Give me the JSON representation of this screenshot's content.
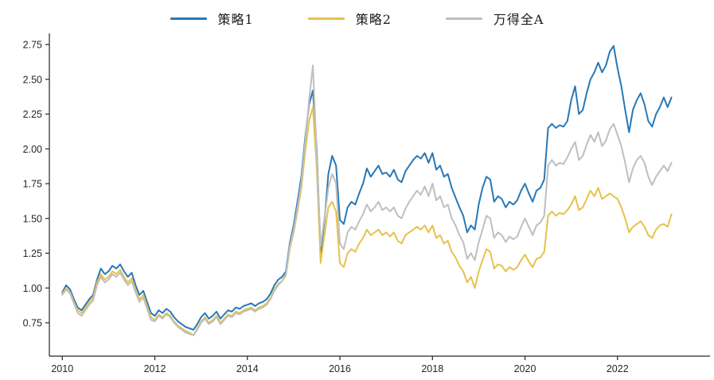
{
  "chart_data": {
    "type": "line",
    "title": "",
    "xlabel": "",
    "ylabel": "",
    "grid": false,
    "legend_position": "top-center",
    "background_color": "#ffffff",
    "axis_color": "#262626",
    "x_start_year": 2010.0,
    "points_per_year": 12,
    "xlim": [
      2009.72,
      2024.0
    ],
    "ylim": [
      0.51,
      2.83
    ],
    "x_ticks": [
      2010,
      2012,
      2014,
      2016,
      2018,
      2020,
      2022
    ],
    "y_ticks": [
      0.75,
      1.0,
      1.25,
      1.5,
      1.75,
      2.0,
      2.25,
      2.5,
      2.75
    ],
    "series": [
      {
        "name": "策略1",
        "color": "#2878b5",
        "values": [
          0.97,
          1.02,
          0.99,
          0.92,
          0.86,
          0.84,
          0.88,
          0.92,
          0.95,
          1.06,
          1.14,
          1.1,
          1.12,
          1.16,
          1.14,
          1.17,
          1.12,
          1.08,
          1.11,
          1.02,
          0.95,
          0.98,
          0.9,
          0.82,
          0.8,
          0.84,
          0.82,
          0.85,
          0.83,
          0.79,
          0.76,
          0.74,
          0.72,
          0.71,
          0.7,
          0.74,
          0.79,
          0.82,
          0.78,
          0.8,
          0.83,
          0.78,
          0.81,
          0.84,
          0.83,
          0.86,
          0.85,
          0.87,
          0.88,
          0.89,
          0.87,
          0.89,
          0.9,
          0.92,
          0.96,
          1.02,
          1.06,
          1.08,
          1.12,
          1.32,
          1.45,
          1.62,
          1.8,
          2.08,
          2.32,
          2.42,
          1.99,
          1.25,
          1.48,
          1.82,
          1.95,
          1.88,
          1.49,
          1.46,
          1.58,
          1.62,
          1.6,
          1.68,
          1.75,
          1.86,
          1.8,
          1.84,
          1.88,
          1.82,
          1.83,
          1.8,
          1.85,
          1.78,
          1.76,
          1.84,
          1.88,
          1.92,
          1.95,
          1.93,
          1.97,
          1.9,
          1.97,
          1.85,
          1.88,
          1.8,
          1.82,
          1.72,
          1.65,
          1.58,
          1.52,
          1.4,
          1.45,
          1.42,
          1.6,
          1.72,
          1.8,
          1.78,
          1.62,
          1.66,
          1.64,
          1.58,
          1.62,
          1.6,
          1.63,
          1.7,
          1.75,
          1.68,
          1.62,
          1.7,
          1.72,
          1.78,
          2.15,
          2.18,
          2.15,
          2.17,
          2.16,
          2.2,
          2.35,
          2.45,
          2.25,
          2.28,
          2.4,
          2.5,
          2.55,
          2.62,
          2.55,
          2.6,
          2.7,
          2.74,
          2.58,
          2.45,
          2.28,
          2.12,
          2.28,
          2.35,
          2.4,
          2.32,
          2.2,
          2.16,
          2.25,
          2.3,
          2.37,
          2.3,
          2.37
        ]
      },
      {
        "name": "策略2",
        "color": "#e6c24a",
        "values": [
          0.96,
          1.0,
          0.97,
          0.9,
          0.84,
          0.82,
          0.86,
          0.9,
          0.93,
          1.04,
          1.1,
          1.06,
          1.08,
          1.12,
          1.1,
          1.13,
          1.08,
          1.04,
          1.07,
          0.99,
          0.92,
          0.95,
          0.87,
          0.79,
          0.77,
          0.81,
          0.79,
          0.82,
          0.8,
          0.76,
          0.73,
          0.71,
          0.69,
          0.68,
          0.66,
          0.71,
          0.76,
          0.79,
          0.75,
          0.77,
          0.8,
          0.75,
          0.78,
          0.81,
          0.8,
          0.83,
          0.82,
          0.84,
          0.85,
          0.86,
          0.84,
          0.86,
          0.87,
          0.89,
          0.93,
          0.99,
          1.03,
          1.05,
          1.09,
          1.28,
          1.4,
          1.55,
          1.72,
          1.98,
          2.2,
          2.3,
          1.85,
          1.18,
          1.38,
          1.58,
          1.62,
          1.55,
          1.18,
          1.15,
          1.25,
          1.28,
          1.26,
          1.32,
          1.36,
          1.42,
          1.38,
          1.4,
          1.42,
          1.38,
          1.4,
          1.37,
          1.4,
          1.34,
          1.32,
          1.38,
          1.4,
          1.42,
          1.44,
          1.42,
          1.45,
          1.4,
          1.45,
          1.36,
          1.38,
          1.32,
          1.34,
          1.26,
          1.22,
          1.16,
          1.12,
          1.04,
          1.08,
          1.0,
          1.12,
          1.2,
          1.28,
          1.26,
          1.14,
          1.17,
          1.16,
          1.12,
          1.15,
          1.13,
          1.15,
          1.2,
          1.24,
          1.19,
          1.15,
          1.21,
          1.22,
          1.26,
          1.52,
          1.55,
          1.52,
          1.54,
          1.53,
          1.56,
          1.6,
          1.66,
          1.56,
          1.58,
          1.64,
          1.7,
          1.66,
          1.72,
          1.64,
          1.66,
          1.68,
          1.66,
          1.64,
          1.58,
          1.5,
          1.4,
          1.44,
          1.46,
          1.48,
          1.44,
          1.38,
          1.36,
          1.42,
          1.45,
          1.46,
          1.44,
          1.53
        ]
      },
      {
        "name": "万得全A",
        "color": "#bfbfbf",
        "values": [
          0.95,
          0.99,
          0.96,
          0.89,
          0.82,
          0.8,
          0.84,
          0.88,
          0.91,
          1.02,
          1.08,
          1.04,
          1.06,
          1.1,
          1.08,
          1.11,
          1.06,
          1.02,
          1.05,
          0.97,
          0.9,
          0.93,
          0.85,
          0.77,
          0.76,
          0.8,
          0.78,
          0.81,
          0.79,
          0.75,
          0.72,
          0.7,
          0.68,
          0.67,
          0.66,
          0.7,
          0.75,
          0.78,
          0.74,
          0.76,
          0.79,
          0.74,
          0.77,
          0.8,
          0.79,
          0.82,
          0.81,
          0.83,
          0.84,
          0.85,
          0.83,
          0.85,
          0.86,
          0.88,
          0.92,
          0.98,
          1.02,
          1.05,
          1.1,
          1.3,
          1.42,
          1.58,
          1.76,
          2.05,
          2.35,
          2.6,
          1.95,
          1.3,
          1.5,
          1.72,
          1.82,
          1.75,
          1.32,
          1.28,
          1.4,
          1.44,
          1.42,
          1.48,
          1.53,
          1.6,
          1.55,
          1.58,
          1.62,
          1.56,
          1.58,
          1.55,
          1.58,
          1.52,
          1.5,
          1.57,
          1.62,
          1.66,
          1.7,
          1.67,
          1.73,
          1.66,
          1.75,
          1.63,
          1.66,
          1.58,
          1.6,
          1.5,
          1.45,
          1.38,
          1.33,
          1.21,
          1.25,
          1.2,
          1.33,
          1.42,
          1.52,
          1.5,
          1.36,
          1.4,
          1.38,
          1.33,
          1.37,
          1.35,
          1.37,
          1.44,
          1.5,
          1.44,
          1.38,
          1.45,
          1.47,
          1.52,
          1.88,
          1.92,
          1.88,
          1.9,
          1.89,
          1.94,
          2.0,
          2.05,
          1.92,
          1.95,
          2.03,
          2.1,
          2.05,
          2.12,
          2.02,
          2.06,
          2.14,
          2.18,
          2.1,
          2.02,
          1.9,
          1.76,
          1.86,
          1.92,
          1.95,
          1.9,
          1.8,
          1.74,
          1.8,
          1.84,
          1.88,
          1.84,
          1.9
        ]
      }
    ]
  }
}
